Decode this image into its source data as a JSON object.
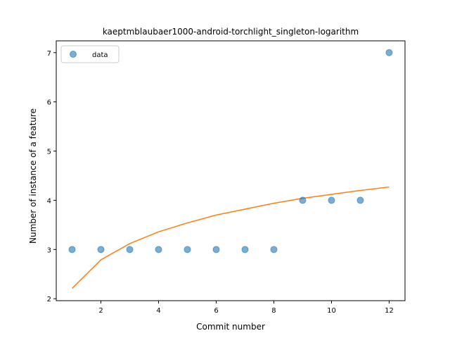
{
  "chart_data": {
    "type": "scatter",
    "title": "kaeptmblaubaer1000-android-torchlight_singleton-logarithm",
    "xlabel": "Commit number",
    "ylabel": "Number of instance of a feature",
    "xlim": [
      0.45,
      12.55
    ],
    "ylim": [
      1.96,
      7.24
    ],
    "xticks": [
      2,
      4,
      6,
      8,
      10,
      12
    ],
    "yticks": [
      2,
      3,
      4,
      5,
      6,
      7
    ],
    "grid": false,
    "legend": {
      "position": "top-left",
      "entries": [
        "data"
      ]
    },
    "series": [
      {
        "name": "data",
        "kind": "scatter",
        "color": "#1f77b4",
        "x": [
          1,
          2,
          3,
          4,
          5,
          6,
          7,
          8,
          9,
          10,
          11,
          12
        ],
        "y": [
          3,
          3,
          3,
          3,
          3,
          3,
          3,
          3,
          4,
          4,
          4,
          7
        ]
      },
      {
        "kind": "line",
        "color": "#ff7f0e",
        "x": [
          1,
          2,
          3,
          4,
          5,
          6,
          7,
          8,
          9,
          10,
          11,
          12
        ],
        "y": [
          2.21,
          2.79,
          3.12,
          3.36,
          3.54,
          3.7,
          3.82,
          3.94,
          4.04,
          4.12,
          4.2,
          4.27
        ]
      }
    ]
  }
}
